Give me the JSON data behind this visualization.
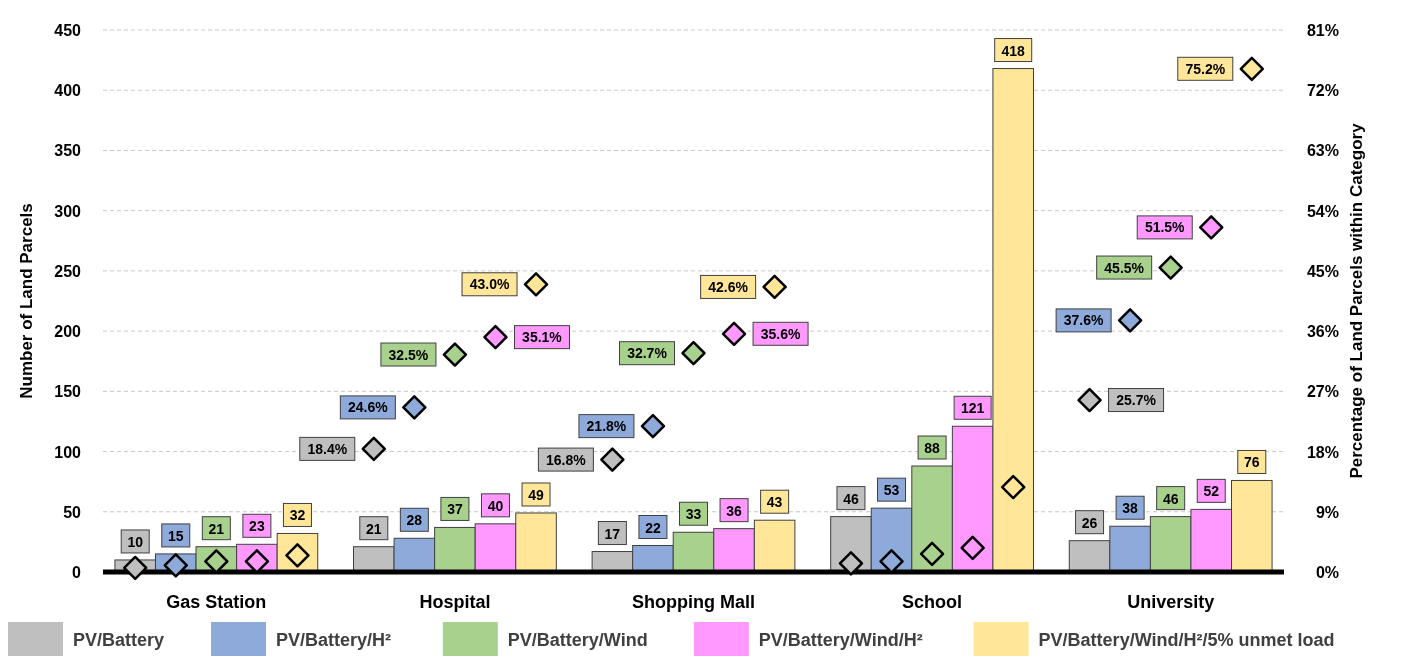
{
  "chart_data": {
    "type": "bar",
    "ylabel": "Number of Land Parcels",
    "y2label": "Percentage of Land Parcels within Category",
    "categories": [
      "Gas Station",
      "Hospital",
      "Shopping Mall",
      "School",
      "University"
    ],
    "ylim": [
      0,
      450
    ],
    "yticks": [
      0,
      50,
      100,
      150,
      200,
      250,
      300,
      350,
      400,
      450
    ],
    "y2lim": [
      0,
      81
    ],
    "y2ticks": [
      {
        "value": 0,
        "label": "0%"
      },
      {
        "value": 9,
        "label": "9%"
      },
      {
        "value": 18,
        "label": "18%"
      },
      {
        "value": 27,
        "label": "27%"
      },
      {
        "value": 36,
        "label": "36%"
      },
      {
        "value": 45,
        "label": "45%"
      },
      {
        "value": 54,
        "label": "54%"
      },
      {
        "value": 63,
        "label": "63%"
      },
      {
        "value": 72,
        "label": "72%"
      },
      {
        "value": 81,
        "label": "81%"
      }
    ],
    "grid": "y",
    "legend": "bottom",
    "data_labels": true,
    "marker": "diamond",
    "series": [
      {
        "name": "PV/Battery",
        "color": "#bfbfbf",
        "values": [
          10,
          21,
          17,
          46,
          26
        ]
      },
      {
        "name": "PV/Battery/H²",
        "color": "#8eaadb",
        "values": [
          15,
          28,
          22,
          53,
          38
        ]
      },
      {
        "name": "PV/Battery/Wind",
        "color": "#a9d18e",
        "values": [
          21,
          37,
          33,
          88,
          46
        ]
      },
      {
        "name": "PV/Battery/Wind/H²",
        "color": "#ff99ff",
        "values": [
          23,
          40,
          36,
          121,
          52
        ]
      },
      {
        "name": "PV/Battery/Wind/H²/5% unmet load",
        "color": "#ffe699",
        "values": [
          32,
          49,
          43,
          418,
          76
        ]
      },
      {
        "type": "scatter",
        "axis": "y2",
        "color": "#bfbfbf",
        "values": [
          0.6,
          18.4,
          16.8,
          1.3,
          25.7
        ],
        "value_labels": [
          null,
          "18.4%",
          "16.8%",
          null,
          "25.7%"
        ]
      },
      {
        "type": "scatter",
        "axis": "y2",
        "color": "#8eaadb",
        "values": [
          1.0,
          24.6,
          21.8,
          1.6,
          37.6
        ],
        "value_labels": [
          null,
          "24.6%",
          "21.8%",
          null,
          "37.6%"
        ]
      },
      {
        "type": "scatter",
        "axis": "y2",
        "color": "#a9d18e",
        "values": [
          1.6,
          32.5,
          32.7,
          2.7,
          45.5
        ],
        "value_labels": [
          null,
          "32.5%",
          "32.7%",
          null,
          "45.5%"
        ]
      },
      {
        "type": "scatter",
        "axis": "y2",
        "color": "#ff99ff",
        "values": [
          1.6,
          35.1,
          35.6,
          3.6,
          51.5
        ],
        "value_labels": [
          null,
          "35.1%",
          "35.6%",
          null,
          "51.5%"
        ]
      },
      {
        "type": "scatter",
        "axis": "y2",
        "color": "#ffe699",
        "values": [
          2.5,
          43.0,
          42.6,
          12.7,
          75.2
        ],
        "value_labels": [
          null,
          "43.0%",
          "42.6%",
          null,
          "75.2%"
        ]
      }
    ]
  }
}
